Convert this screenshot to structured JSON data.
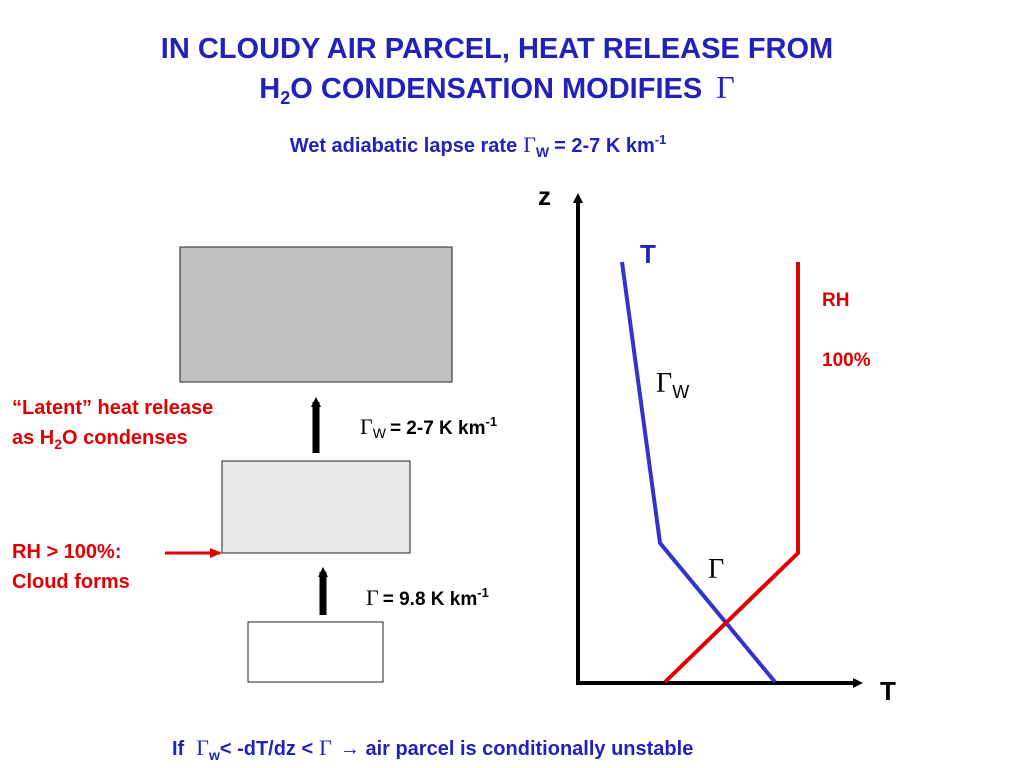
{
  "header": {
    "title_line1": "IN CLOUDY AIR PARCEL, HEAT RELEASE FROM",
    "title_line2": [
      "H",
      "2",
      "O CONDENSATION MODIFIES",
      "Γ"
    ],
    "subtitle": [
      "Wet adiabatic lapse rate",
      "Γ",
      "W",
      "= 2-7 K km",
      "-1"
    ]
  },
  "parcel": {
    "latent_label": [
      "“Latent” heat release",
      "as H",
      "2",
      "O condenses"
    ],
    "rh_label": [
      "RH > 100%:",
      "Cloud forms"
    ],
    "upper_rate": [
      "Γ",
      "W",
      "= 2-7 K km",
      "-1"
    ],
    "lower_rate": [
      "Γ",
      "= 9.8 K km",
      "-1"
    ]
  },
  "plot": {
    "y_axis": "z",
    "x_axis": "T",
    "t_label": "T",
    "rh_label": [
      "RH",
      "100%"
    ],
    "gamma_w": [
      "Γ",
      "W"
    ],
    "gamma": "Γ"
  },
  "footer": [
    "If",
    "Γ",
    "w",
    "< -dT/dz <",
    "Γ",
    "→ air parcel is conditionally unstable"
  ]
}
